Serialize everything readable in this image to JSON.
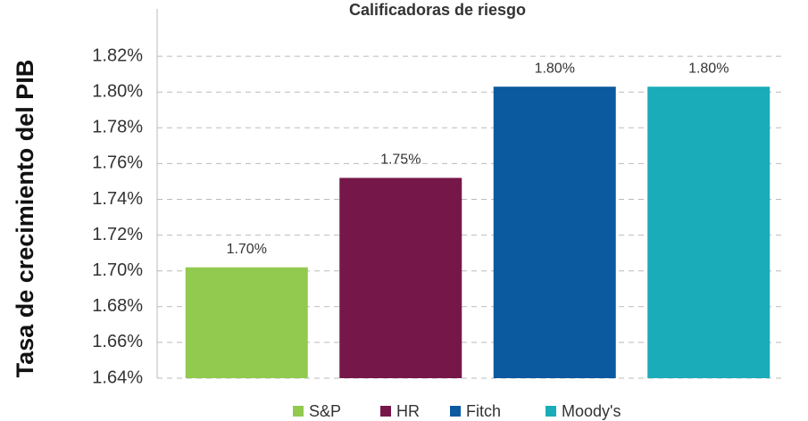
{
  "chart_data": {
    "type": "bar",
    "title": "Calificadoras de riesgo",
    "ylabel": "Tasa de crecimiento del PIB",
    "categories": [
      "S&P",
      "HR",
      "Fitch",
      "Moody's"
    ],
    "values": [
      1.702,
      1.752,
      1.803,
      1.803
    ],
    "value_labels": [
      "1.70%",
      "1.75%",
      "1.80%",
      "1.80%"
    ],
    "colors": [
      "#92c94f",
      "#76174a",
      "#0b5aa0",
      "#1aacb8"
    ],
    "ylim": [
      1.64,
      1.84
    ],
    "yticks": [
      {
        "value": 1.64,
        "label": "1.64%"
      },
      {
        "value": 1.66,
        "label": "1.66%"
      },
      {
        "value": 1.68,
        "label": "1.68%"
      },
      {
        "value": 1.7,
        "label": "1.70%"
      },
      {
        "value": 1.72,
        "label": "1.72%"
      },
      {
        "value": 1.74,
        "label": "1.74%"
      },
      {
        "value": 1.76,
        "label": "1.76%"
      },
      {
        "value": 1.78,
        "label": "1.78%"
      },
      {
        "value": 1.8,
        "label": "1.80%"
      },
      {
        "value": 1.82,
        "label": "1.82%"
      }
    ],
    "grid": true,
    "legend": "bottom"
  }
}
